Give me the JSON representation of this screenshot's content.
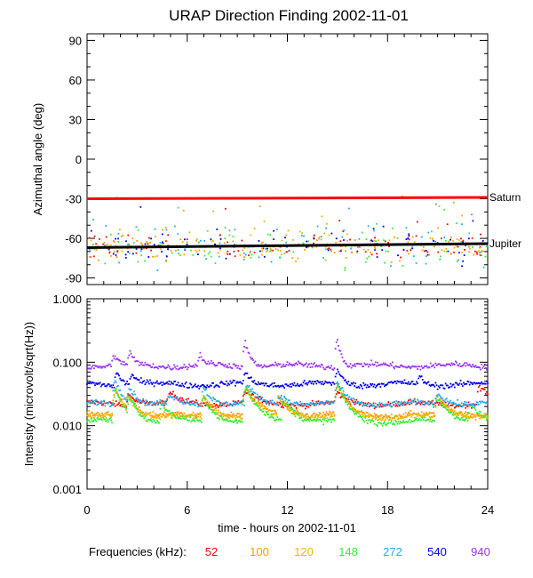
{
  "chart_data": {
    "type": "scatter",
    "title": "URAP Direction Finding  2002-11-01",
    "xlabel": "time - hours on 2002-11-01",
    "xlim": [
      0,
      24
    ],
    "x_ticks": [
      "0",
      "6",
      "12",
      "18",
      "24"
    ],
    "panels": [
      {
        "name": "azimuth",
        "ylabel": "Azimuthal angle (deg)",
        "ylim": [
          -95,
          95
        ],
        "y_ticks": [
          "90",
          "60",
          "30",
          "0",
          "-30",
          "-60",
          "-90"
        ],
        "reference_lines": [
          {
            "label": "Saturn",
            "color": "#ff0000",
            "y_start": -30,
            "y_end": -29
          },
          {
            "label": "Jupiter",
            "color": "#000000",
            "y_start": -67,
            "y_end": -64
          }
        ]
      },
      {
        "name": "intensity",
        "ylabel": "Intensity (microvolt/sqrt(Hz))",
        "ylim": [
          0.001,
          1.0
        ],
        "log_scale": true,
        "y_ticks": [
          "1.000",
          "0.100",
          "0.010",
          "0.001"
        ],
        "series": [
          {
            "freq": "52",
            "color": "#ff0000",
            "baseline": 0.022,
            "bursts": [
              [
                2.5,
                0.5,
                0.01
              ],
              [
                5.0,
                0.6,
                0.01
              ],
              [
                9.5,
                0.6,
                0.012
              ],
              [
                15.0,
                0.5,
                0.01
              ],
              [
                23.5,
                0.6,
                0.02
              ]
            ]
          },
          {
            "freq": "100",
            "color": "#ff9900",
            "baseline": 0.0145,
            "bursts": [
              [
                1.7,
                0.5,
                0.022
              ],
              [
                2.5,
                0.4,
                0.012
              ],
              [
                7.0,
                0.5,
                0.015
              ],
              [
                9.5,
                0.6,
                0.025
              ],
              [
                11.5,
                0.6,
                0.012
              ],
              [
                15.0,
                0.5,
                0.028
              ],
              [
                21.0,
                0.7,
                0.013
              ]
            ]
          },
          {
            "freq": "120",
            "color": "#e6b800",
            "baseline": 0.0135,
            "bursts": [
              [
                1.7,
                0.5,
                0.023
              ],
              [
                2.5,
                0.4,
                0.012
              ],
              [
                7.0,
                0.5,
                0.016
              ],
              [
                9.5,
                0.6,
                0.026
              ],
              [
                11.5,
                0.6,
                0.013
              ],
              [
                15.0,
                0.5,
                0.03
              ],
              [
                21.0,
                0.7,
                0.014
              ]
            ]
          },
          {
            "freq": "148",
            "color": "#33ee33",
            "baseline": 0.0115,
            "bursts": [
              [
                1.7,
                0.5,
                0.025
              ],
              [
                2.6,
                0.4,
                0.013
              ],
              [
                4.5,
                0.5,
                0.01
              ],
              [
                7.0,
                0.5,
                0.017
              ],
              [
                9.5,
                0.6,
                0.027
              ],
              [
                11.8,
                0.6,
                0.014
              ],
              [
                15.0,
                0.5,
                0.032
              ],
              [
                21.0,
                0.7,
                0.015
              ],
              [
                23.0,
                0.5,
                0.01
              ]
            ]
          },
          {
            "freq": "272",
            "color": "#22aaee",
            "baseline": 0.022,
            "bursts": [
              [
                1.7,
                0.4,
                0.03
              ],
              [
                2.6,
                0.4,
                0.015
              ],
              [
                5.0,
                0.4,
                0.008
              ],
              [
                7.0,
                0.4,
                0.02
              ],
              [
                9.6,
                0.5,
                0.02
              ],
              [
                11.6,
                0.5,
                0.008
              ],
              [
                15.0,
                0.4,
                0.025
              ],
              [
                21.0,
                0.6,
                0.01
              ]
            ]
          },
          {
            "freq": "540",
            "color": "#0000ee",
            "baseline": 0.045,
            "bursts": [
              [
                1.8,
                0.3,
                0.025
              ],
              [
                2.7,
                0.3,
                0.02
              ],
              [
                9.5,
                0.3,
                0.02
              ],
              [
                15.0,
                0.3,
                0.03
              ],
              [
                20.0,
                0.2,
                0.015
              ]
            ]
          },
          {
            "freq": "940",
            "color": "#9933ee",
            "baseline": 0.088,
            "bursts": [
              [
                1.6,
                0.25,
                0.04
              ],
              [
                2.6,
                0.2,
                0.05
              ],
              [
                6.8,
                0.2,
                0.04
              ],
              [
                9.5,
                0.25,
                0.12
              ],
              [
                15.0,
                0.2,
                0.15
              ]
            ]
          }
        ]
      }
    ],
    "legend": {
      "label": "Frequencies (kHz):",
      "placement": "bottom"
    }
  }
}
